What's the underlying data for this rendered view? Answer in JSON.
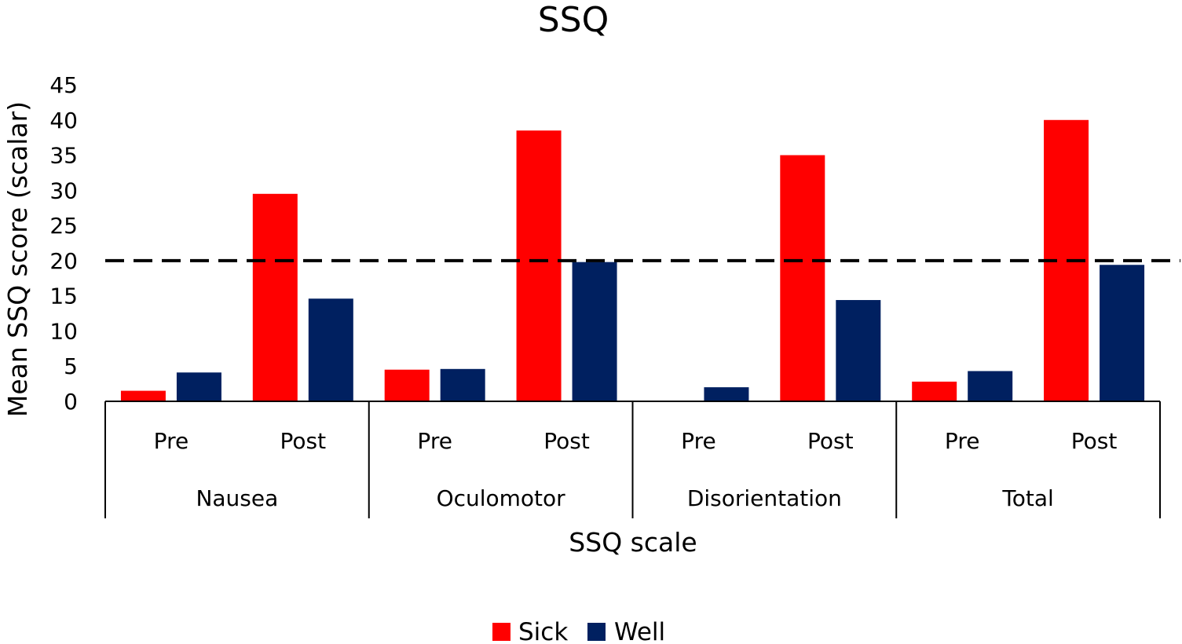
{
  "chart_data": {
    "type": "bar",
    "title": "SSQ",
    "xlabel": "SSQ scale",
    "ylabel": "Mean SSQ score (scalar)",
    "ylim": [
      0,
      45
    ],
    "yticks": [
      0,
      5,
      10,
      15,
      20,
      25,
      30,
      35,
      40,
      45
    ],
    "groups": [
      "Nausea",
      "Oculomotor",
      "Disorientation",
      "Total"
    ],
    "categories": [
      "Pre",
      "Post",
      "Pre",
      "Post",
      "Pre",
      "Post",
      "Pre",
      "Post"
    ],
    "series": [
      {
        "name": "Sick",
        "color": "#ff0000",
        "values": [
          1.5,
          29.5,
          4.5,
          38.5,
          0,
          35,
          2.8,
          40
        ]
      },
      {
        "name": "Well",
        "color": "#002060",
        "values": [
          4.1,
          14.6,
          4.6,
          19.8,
          2.0,
          14.4,
          4.3,
          19.4
        ]
      }
    ],
    "reference_line": {
      "value": 20,
      "style": "dashed",
      "color": "#000000"
    },
    "grid": false,
    "legend": "bottom-center"
  }
}
